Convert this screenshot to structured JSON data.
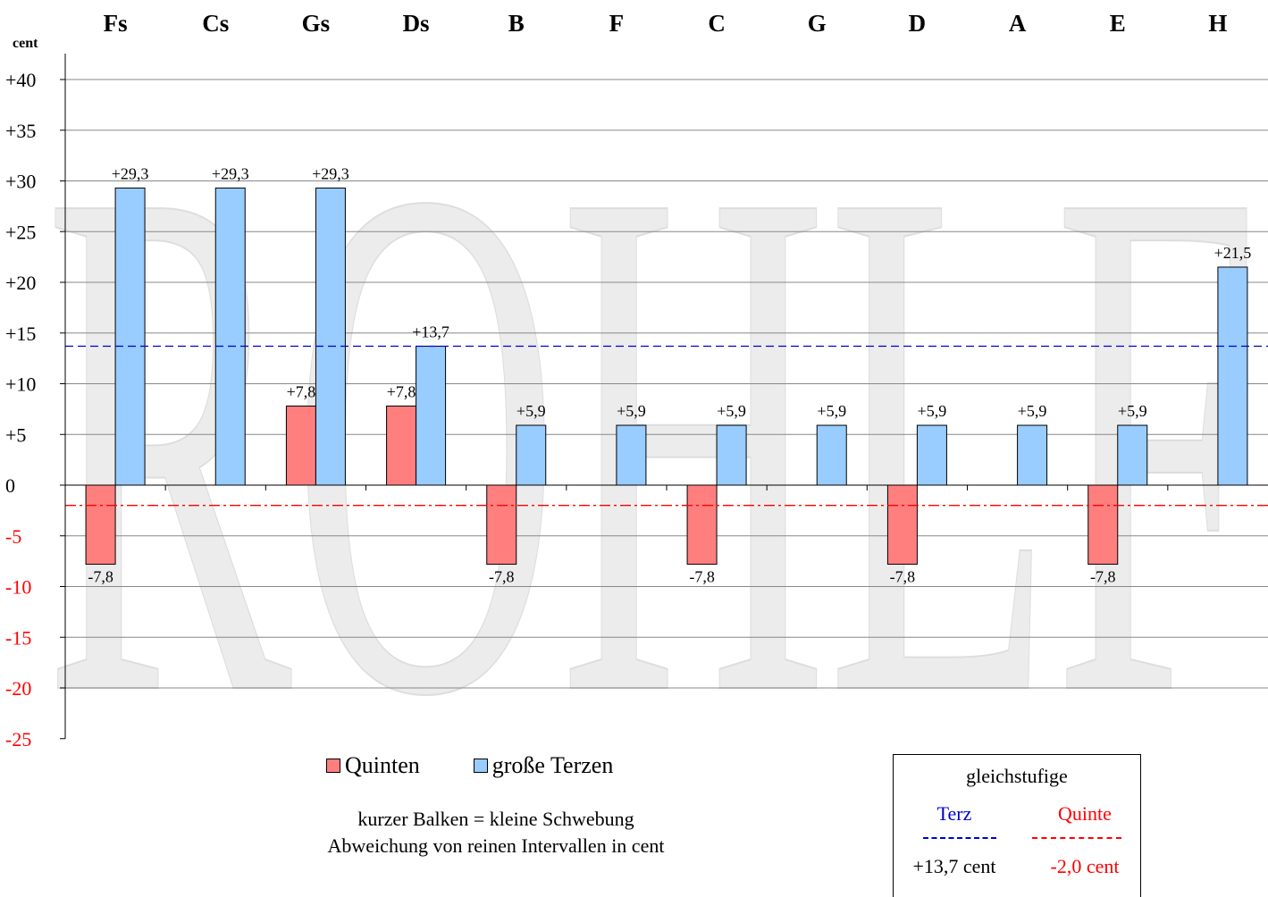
{
  "chart_data": {
    "type": "bar",
    "ylabel": "cent",
    "ylim": [
      -25,
      40
    ],
    "y_ticks": [
      "+40",
      "+35",
      "+30",
      "+25",
      "+20",
      "+15",
      "+10",
      "+5",
      "0",
      "-5",
      "-10",
      "-15",
      "-20",
      "-25"
    ],
    "grid": true,
    "categories": [
      "Fs",
      "Cs",
      "Gs",
      "Ds",
      "B",
      "F",
      "C",
      "G",
      "D",
      "A",
      "E",
      "H"
    ],
    "series": [
      {
        "name": "Quinten",
        "color": "#ff7f7f",
        "values": [
          -7.8,
          0,
          7.8,
          7.8,
          -7.8,
          0,
          -7.8,
          0,
          -7.8,
          0,
          -7.8,
          0
        ],
        "labels": [
          "-7,8",
          "",
          "+7,8",
          "+7,8",
          "-7,8",
          "",
          "-7,8",
          "",
          "-7,8",
          "",
          "-7,8",
          ""
        ]
      },
      {
        "name": "große Terzen",
        "color": "#99ccff",
        "values": [
          29.3,
          29.3,
          29.3,
          13.7,
          5.9,
          5.9,
          5.9,
          5.9,
          5.9,
          5.9,
          5.9,
          21.5
        ],
        "labels": [
          "+29,3",
          "+29,3",
          "+29,3",
          "+13,7",
          "+5,9",
          "+5,9",
          "+5,9",
          "+5,9",
          "+5,9",
          "+5,9",
          "+5,9",
          "+21,5"
        ]
      }
    ],
    "reference_lines": [
      {
        "name": "Terz",
        "value": 13.7,
        "color": "#0000cc",
        "style": "dashed"
      },
      {
        "name": "Quinte",
        "value": -2.0,
        "color": "#ff0000",
        "style": "dash-dot"
      }
    ],
    "watermark": "ROHLF"
  },
  "legend": {
    "quinten": "Quinten",
    "terzen": "große Terzen"
  },
  "notes": {
    "line1": "kurzer Balken = kleine Schwebung",
    "line2": "Abweichung von reinen Intervallen in cent"
  },
  "equal_temperament": {
    "title": "gleichstufige",
    "terz_label": "Terz",
    "terz_value": "+13,7 cent",
    "quinte_label": "Quinte",
    "quinte_value": "-2,0 cent",
    "terz_color": "#0000cc",
    "quinte_color": "#ff0000"
  }
}
